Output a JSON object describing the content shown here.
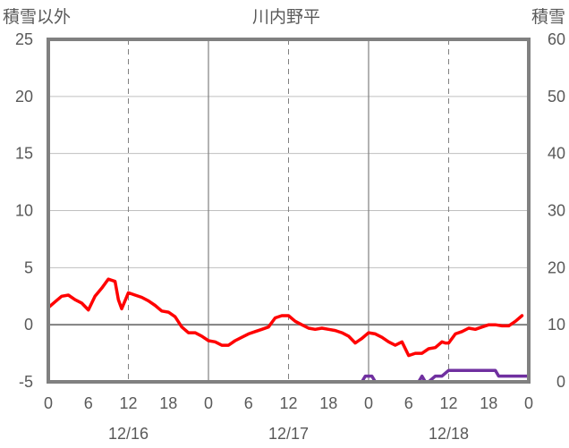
{
  "chart_data": {
    "type": "line",
    "title": "川内野平",
    "left_axis_label": "積雪以外",
    "right_axis_label": "積雪",
    "left_ylim": [
      -5,
      25
    ],
    "left_yticks": [
      "25",
      "20",
      "15",
      "10",
      "5",
      "0",
      "-5"
    ],
    "right_ylim": [
      0,
      60
    ],
    "right_yticks": [
      "60",
      "50",
      "40",
      "30",
      "20",
      "10",
      "0"
    ],
    "xlim": [
      0,
      72
    ],
    "x_unit": "hours from 12/16 00:00",
    "x_tick_labels": [
      "0",
      "6",
      "12",
      "18",
      "0",
      "6",
      "12",
      "18",
      "0",
      "6",
      "12",
      "18",
      "0"
    ],
    "date_labels": [
      "12/16",
      "12/17",
      "12/18"
    ],
    "grid": "vertical lines every 12 h (solid at day boundaries, dashed at noon)",
    "series": [
      {
        "axis": "left",
        "color": "#ff0000",
        "x": [
          0,
          1,
          2,
          3,
          4,
          5,
          6,
          7,
          8,
          9,
          10,
          10.5,
          11,
          12,
          13,
          14,
          15,
          16,
          17,
          18,
          19,
          20,
          21,
          22,
          23,
          24,
          25,
          26,
          27,
          28,
          29,
          30,
          31,
          32,
          33,
          34,
          35,
          36,
          37,
          38,
          39,
          40,
          41,
          42,
          43,
          44,
          45,
          46,
          46.5,
          47,
          48,
          49,
          50,
          51,
          52,
          53,
          54,
          55,
          56,
          57,
          58,
          59,
          59.5,
          60,
          61,
          62,
          63,
          64,
          65,
          66,
          67,
          68,
          69,
          70,
          71
        ],
        "values": [
          1.5,
          2.0,
          2.5,
          2.6,
          2.2,
          1.9,
          1.3,
          2.5,
          3.2,
          4.0,
          3.8,
          2.2,
          1.4,
          2.8,
          2.6,
          2.4,
          2.1,
          1.7,
          1.2,
          1.1,
          0.7,
          -0.2,
          -0.7,
          -0.7,
          -1.0,
          -1.4,
          -1.5,
          -1.8,
          -1.8,
          -1.4,
          -1.1,
          -0.8,
          -0.6,
          -0.4,
          -0.2,
          0.6,
          0.8,
          0.8,
          0.3,
          0.0,
          -0.3,
          -0.4,
          -0.3,
          -0.4,
          -0.5,
          -0.7,
          -1.0,
          -1.6,
          -1.4,
          -1.2,
          -0.7,
          -0.8,
          -1.1,
          -1.5,
          -1.8,
          -1.5,
          -2.7,
          -2.5,
          -2.5,
          -2.1,
          -2.0,
          -1.5,
          -1.6,
          -1.6,
          -0.8,
          -0.6,
          -0.3,
          -0.4,
          -0.2,
          0.0,
          0.0,
          -0.1,
          -0.1,
          0.3,
          0.8
        ]
      },
      {
        "axis": "right",
        "color": "#7030a0",
        "x": [
          0,
          47,
          47.5,
          48,
          48.5,
          49,
          55,
          55.5,
          56,
          56.5,
          57,
          58,
          59,
          60,
          61,
          66,
          67,
          67.5,
          68,
          72
        ],
        "values": [
          0,
          0,
          1,
          1,
          1,
          0,
          0,
          0,
          1,
          0,
          0,
          1,
          1,
          2,
          2,
          2,
          2,
          1,
          1,
          1
        ]
      }
    ]
  }
}
